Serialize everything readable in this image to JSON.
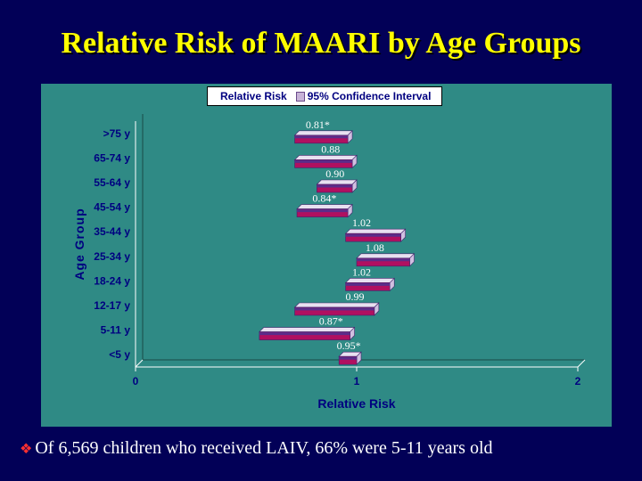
{
  "slide": {
    "title": "Relative Risk of MAARI by Age Groups",
    "footer_bullet_icon": "diamond-bullet-icon",
    "footer_text": "Of 6,569 children who received LAIV, 66% were 5-11 years old"
  },
  "colors": {
    "background": "#020057",
    "panel": "#2f8a85",
    "title": "#ffff00",
    "bar_front": "#b01060",
    "bar_top": "#5a2d8a",
    "axis_text": "#000080",
    "value_text": "#ffffff"
  },
  "chart_data": {
    "type": "bar",
    "orientation": "horizontal",
    "style": "3d-floating-range",
    "legend": [
      "Relative Risk",
      "95% Confidence Interval"
    ],
    "legend_position": "top",
    "ylabel": "Age Group",
    "xlabel": "Relative Risk",
    "xlim": [
      0,
      2
    ],
    "xticks": [
      "0",
      "1",
      "2"
    ],
    "categories": [
      ">75 y",
      "65-74 y",
      "55-64 y",
      "45-54 y",
      "35-44 y",
      "25-34 y",
      "18-24 y",
      "12-17 y",
      "5-11 y",
      "<5 y"
    ],
    "series": [
      {
        "name": "Relative Risk",
        "values": [
          0.81,
          0.88,
          0.9,
          0.84,
          1.02,
          1.08,
          1.02,
          0.99,
          0.87,
          0.95
        ],
        "labels": [
          "0.81*",
          "0.88",
          "0.90",
          "0.84*",
          "1.02",
          "1.08",
          "1.02",
          "0.99",
          "0.87*",
          "0.95*"
        ]
      },
      {
        "name": "95% Confidence Interval",
        "lower": [
          0.72,
          0.72,
          0.82,
          0.73,
          0.95,
          1.0,
          0.95,
          0.72,
          0.56,
          0.92
        ],
        "upper": [
          0.96,
          0.98,
          0.98,
          0.96,
          1.2,
          1.24,
          1.15,
          1.08,
          0.97,
          1.0
        ]
      }
    ]
  }
}
